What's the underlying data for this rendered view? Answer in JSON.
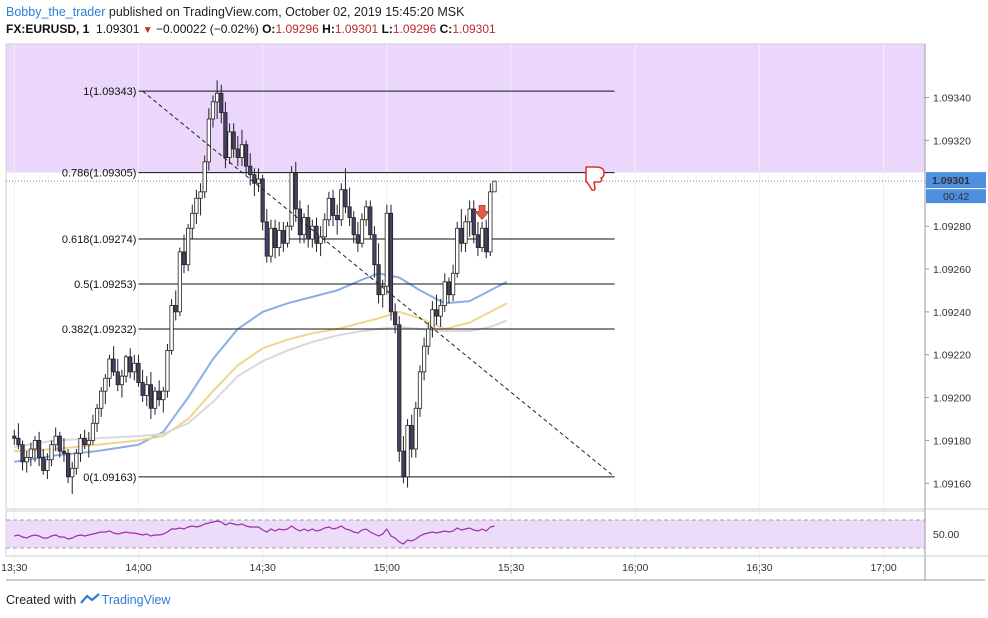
{
  "header": {
    "publisher": "Bobby_the_trader",
    "published_text": "published on TradingView.com, October 02, 2019 15:45:20 MSK",
    "symbol": "FX:EURUSD, 1",
    "last": "1.09301",
    "change": "−0.00022 (−0.02%)",
    "o_label": "O:",
    "o_value": "1.09296",
    "h_label": "H:",
    "h_value": "1.09301",
    "l_label": "L:",
    "l_value": "1.09296",
    "c_label": "C:",
    "c_value": "1.09301"
  },
  "price_axis": {
    "ticks": [
      "1.09340",
      "1.09320",
      "1.09300",
      "1.09280",
      "1.09260",
      "1.09240",
      "1.09220",
      "1.09200",
      "1.09180",
      "1.09160"
    ],
    "last_price_label": "1.09301",
    "countdown_label": "00:42"
  },
  "rsi_axis": {
    "label": "50.00"
  },
  "time_axis": {
    "ticks": [
      "13:30",
      "14:00",
      "14:30",
      "15:00",
      "15:30",
      "16:00",
      "16:30",
      "17:00"
    ]
  },
  "fib_levels": [
    {
      "label": "1(1.09343)",
      "price": 1.09343
    },
    {
      "label": "0.786(1.09305)",
      "price": 1.09305
    },
    {
      "label": "0.618(1.09274)",
      "price": 1.09274
    },
    {
      "label": "0.5(1.09253)",
      "price": 1.09253
    },
    {
      "label": "0.382(1.09232)",
      "price": 1.09232
    },
    {
      "label": "0(1.09163)",
      "price": 1.09163
    }
  ],
  "footer": {
    "created_with": "Created with",
    "brand": "TradingView"
  },
  "colors": {
    "zone": "#ead7fb",
    "candle_dark": "#4a3d66",
    "candle_light": "#ffffff",
    "ma_blue": "#8aaee6",
    "ma_yellow": "#f0d58a",
    "ma_gray": "#d9d9d9",
    "rsi": "#9b2fa8",
    "rsi_band": "#ecdcfa",
    "arrow_down": "#e35b4a",
    "thumb": "#e0332b"
  },
  "chart_data": {
    "type": "candlestick",
    "x_axis": "time",
    "y_axis": "price",
    "resolution_minutes": 1,
    "ylim": [
      1.09148,
      1.09365
    ],
    "xlim": [
      "13:28",
      "17:10"
    ],
    "candles": [
      [
        1.09182,
        1.09185,
        1.09178,
        1.09181
      ],
      [
        1.09181,
        1.09188,
        1.09176,
        1.09178
      ],
      [
        1.09178,
        1.0918,
        1.09166,
        1.0917
      ],
      [
        1.0917,
        1.09175,
        1.09165,
        1.09172
      ],
      [
        1.09172,
        1.09179,
        1.09168,
        1.09176
      ],
      [
        1.09176,
        1.09182,
        1.0917,
        1.0918
      ],
      [
        1.0918,
        1.09184,
        1.09168,
        1.09172
      ],
      [
        1.09172,
        1.09176,
        1.09164,
        1.09166
      ],
      [
        1.09166,
        1.09174,
        1.09162,
        1.09171
      ],
      [
        1.09171,
        1.0918,
        1.09168,
        1.09178
      ],
      [
        1.09178,
        1.09186,
        1.09175,
        1.09182
      ],
      [
        1.09182,
        1.09184,
        1.09172,
        1.09175
      ],
      [
        1.09175,
        1.09181,
        1.0917,
        1.09174
      ],
      [
        1.09174,
        1.09176,
        1.0916,
        1.09163
      ],
      [
        1.09163,
        1.0917,
        1.09155,
        1.09167
      ],
      [
        1.09167,
        1.09176,
        1.09164,
        1.09174
      ],
      [
        1.09174,
        1.09183,
        1.0917,
        1.09181
      ],
      [
        1.09181,
        1.09185,
        1.09176,
        1.09178
      ],
      [
        1.09178,
        1.09184,
        1.09172,
        1.0918
      ],
      [
        1.0918,
        1.09192,
        1.09178,
        1.09188
      ],
      [
        1.09188,
        1.09197,
        1.09184,
        1.09195
      ],
      [
        1.09195,
        1.09205,
        1.09191,
        1.09203
      ],
      [
        1.09203,
        1.09211,
        1.09197,
        1.09209
      ],
      [
        1.09209,
        1.0922,
        1.09205,
        1.09218
      ],
      [
        1.09218,
        1.09224,
        1.0921,
        1.09212
      ],
      [
        1.09212,
        1.09218,
        1.09203,
        1.09206
      ],
      [
        1.09206,
        1.09213,
        1.092,
        1.0921
      ],
      [
        1.0921,
        1.0922,
        1.09207,
        1.09219
      ],
      [
        1.09219,
        1.09223,
        1.09209,
        1.09212
      ],
      [
        1.09212,
        1.0922,
        1.09208,
        1.09216
      ],
      [
        1.09216,
        1.0922,
        1.09205,
        1.09207
      ],
      [
        1.09207,
        1.09213,
        1.09198,
        1.09201
      ],
      [
        1.09201,
        1.0921,
        1.09196,
        1.09206
      ],
      [
        1.09206,
        1.09212,
        1.0919,
        1.09195
      ],
      [
        1.09195,
        1.09205,
        1.09192,
        1.09203
      ],
      [
        1.09203,
        1.09208,
        1.09196,
        1.09199
      ],
      [
        1.09199,
        1.09205,
        1.09193,
        1.09203
      ],
      [
        1.09203,
        1.09225,
        1.092,
        1.09222
      ],
      [
        1.09222,
        1.09246,
        1.0922,
        1.09243
      ],
      [
        1.09243,
        1.0925,
        1.09236,
        1.0924
      ],
      [
        1.0924,
        1.0927,
        1.09238,
        1.09268
      ],
      [
        1.09268,
        1.09276,
        1.09258,
        1.09262
      ],
      [
        1.09262,
        1.09281,
        1.09259,
        1.09279
      ],
      [
        1.09279,
        1.0929,
        1.09274,
        1.09286
      ],
      [
        1.09286,
        1.09297,
        1.09281,
        1.09293
      ],
      [
        1.09293,
        1.093,
        1.09285,
        1.09296
      ],
      [
        1.09296,
        1.09313,
        1.09293,
        1.0931
      ],
      [
        1.0931,
        1.09335,
        1.09306,
        1.0933
      ],
      [
        1.0933,
        1.09341,
        1.09326,
        1.09338
      ],
      [
        1.09338,
        1.09348,
        1.0933,
        1.09342
      ],
      [
        1.09342,
        1.09346,
        1.09328,
        1.09333
      ],
      [
        1.09333,
        1.09338,
        1.09307,
        1.09312
      ],
      [
        1.09312,
        1.09328,
        1.09309,
        1.09324
      ],
      [
        1.09324,
        1.09328,
        1.09312,
        1.09316
      ],
      [
        1.09316,
        1.09322,
        1.09308,
        1.09312
      ],
      [
        1.09312,
        1.09325,
        1.09308,
        1.09318
      ],
      [
        1.09318,
        1.0932,
        1.09304,
        1.09308
      ],
      [
        1.09308,
        1.09314,
        1.09299,
        1.09304
      ],
      [
        1.09304,
        1.09307,
        1.09294,
        1.093
      ],
      [
        1.093,
        1.09307,
        1.09296,
        1.09302
      ],
      [
        1.09302,
        1.09304,
        1.09278,
        1.09282
      ],
      [
        1.09282,
        1.09288,
        1.09263,
        1.09266
      ],
      [
        1.09266,
        1.09283,
        1.09263,
        1.09279
      ],
      [
        1.09279,
        1.09283,
        1.09265,
        1.0927
      ],
      [
        1.0927,
        1.09282,
        1.09266,
        1.09278
      ],
      [
        1.09278,
        1.09282,
        1.09268,
        1.09272
      ],
      [
        1.09272,
        1.09282,
        1.0927,
        1.0928
      ],
      [
        1.0928,
        1.09308,
        1.09278,
        1.09305
      ],
      [
        1.09305,
        1.0931,
        1.09282,
        1.09288
      ],
      [
        1.09288,
        1.09292,
        1.09272,
        1.09276
      ],
      [
        1.09276,
        1.09286,
        1.09272,
        1.09284
      ],
      [
        1.09284,
        1.0929,
        1.0927,
        1.09274
      ],
      [
        1.09274,
        1.09283,
        1.0927,
        1.0928
      ],
      [
        1.0928,
        1.09284,
        1.09268,
        1.09272
      ],
      [
        1.09272,
        1.0928,
        1.09266,
        1.09275
      ],
      [
        1.09275,
        1.09286,
        1.09272,
        1.09283
      ],
      [
        1.09283,
        1.09296,
        1.0928,
        1.09293
      ],
      [
        1.09293,
        1.09297,
        1.0928,
        1.09285
      ],
      [
        1.09285,
        1.0929,
        1.09276,
        1.09283
      ],
      [
        1.09283,
        1.093,
        1.0928,
        1.09297
      ],
      [
        1.09297,
        1.09307,
        1.09286,
        1.09289
      ],
      [
        1.09289,
        1.09298,
        1.0928,
        1.09284
      ],
      [
        1.09284,
        1.09287,
        1.09272,
        1.09276
      ],
      [
        1.09276,
        1.09282,
        1.09268,
        1.09272
      ],
      [
        1.09272,
        1.09286,
        1.0927,
        1.09283
      ],
      [
        1.09283,
        1.09292,
        1.0928,
        1.09289
      ],
      [
        1.09289,
        1.09292,
        1.09274,
        1.09276
      ],
      [
        1.09276,
        1.0928,
        1.09256,
        1.09262
      ],
      [
        1.09262,
        1.09272,
        1.09244,
        1.09248
      ],
      [
        1.09248,
        1.09255,
        1.09242,
        1.09252
      ],
      [
        1.09252,
        1.0929,
        1.09248,
        1.09286
      ],
      [
        1.09286,
        1.0929,
        1.09236,
        1.0924
      ],
      [
        1.0924,
        1.09244,
        1.0923,
        1.09234
      ],
      [
        1.09234,
        1.09238,
        1.0917,
        1.09175
      ],
      [
        1.09175,
        1.09182,
        1.0916,
        1.09163
      ],
      [
        1.09163,
        1.0919,
        1.09158,
        1.09187
      ],
      [
        1.09187,
        1.09192,
        1.09172,
        1.09176
      ],
      [
        1.09176,
        1.09198,
        1.09172,
        1.09195
      ],
      [
        1.09195,
        1.09215,
        1.09191,
        1.09212
      ],
      [
        1.09212,
        1.09228,
        1.09208,
        1.09224
      ],
      [
        1.09224,
        1.09235,
        1.0922,
        1.09232
      ],
      [
        1.09232,
        1.09245,
        1.09228,
        1.09241
      ],
      [
        1.09241,
        1.09248,
        1.09234,
        1.09238
      ],
      [
        1.09238,
        1.09246,
        1.09233,
        1.09243
      ],
      [
        1.09243,
        1.09258,
        1.0924,
        1.09254
      ],
      [
        1.09254,
        1.09256,
        1.09244,
        1.09248
      ],
      [
        1.09248,
        1.09262,
        1.09245,
        1.09258
      ],
      [
        1.09258,
        1.09282,
        1.09256,
        1.09279
      ],
      [
        1.09279,
        1.09288,
        1.09268,
        1.09272
      ],
      [
        1.09272,
        1.09285,
        1.09268,
        1.09282
      ],
      [
        1.09282,
        1.09292,
        1.09275,
        1.09288
      ],
      [
        1.09288,
        1.09292,
        1.09272,
        1.09276
      ],
      [
        1.09276,
        1.09282,
        1.09266,
        1.0927
      ],
      [
        1.0927,
        1.09282,
        1.09268,
        1.09279
      ],
      [
        1.09279,
        1.09283,
        1.09265,
        1.09268
      ],
      [
        1.09268,
        1.093,
        1.09266,
        1.09296
      ],
      [
        1.09296,
        1.09301,
        1.09296,
        1.09301
      ]
    ],
    "moving_averages": [
      {
        "color": "#8aaee6",
        "points": [
          [
            0,
            1.0917
          ],
          [
            10,
            1.09173
          ],
          [
            20,
            1.09175
          ],
          [
            30,
            1.09178
          ],
          [
            36,
            1.09184
          ],
          [
            42,
            1.092
          ],
          [
            48,
            1.09218
          ],
          [
            54,
            1.09232
          ],
          [
            60,
            1.0924
          ],
          [
            66,
            1.09244
          ],
          [
            72,
            1.09247
          ],
          [
            78,
            1.0925
          ],
          [
            84,
            1.09255
          ],
          [
            88,
            1.09258
          ],
          [
            93,
            1.09256
          ],
          [
            98,
            1.0925
          ],
          [
            104,
            1.09244
          ],
          [
            110,
            1.09245
          ],
          [
            115,
            1.0925
          ],
          [
            119,
            1.09254
          ]
        ]
      },
      {
        "color": "#f0d58a",
        "points": [
          [
            0,
            1.09175
          ],
          [
            10,
            1.09176
          ],
          [
            20,
            1.09178
          ],
          [
            30,
            1.0918
          ],
          [
            36,
            1.09182
          ],
          [
            42,
            1.0919
          ],
          [
            48,
            1.09203
          ],
          [
            54,
            1.09215
          ],
          [
            60,
            1.09223
          ],
          [
            66,
            1.09227
          ],
          [
            72,
            1.0923
          ],
          [
            78,
            1.09232
          ],
          [
            84,
            1.09235
          ],
          [
            88,
            1.09237
          ],
          [
            93,
            1.0924
          ],
          [
            98,
            1.09237
          ],
          [
            104,
            1.09232
          ],
          [
            110,
            1.09235
          ],
          [
            115,
            1.0924
          ],
          [
            119,
            1.09244
          ]
        ]
      },
      {
        "color": "#d9d9d9",
        "points": [
          [
            0,
            1.09177
          ],
          [
            10,
            1.0918
          ],
          [
            20,
            1.09181
          ],
          [
            30,
            1.09182
          ],
          [
            36,
            1.09183
          ],
          [
            42,
            1.09188
          ],
          [
            48,
            1.09198
          ],
          [
            54,
            1.0921
          ],
          [
            60,
            1.09217
          ],
          [
            66,
            1.09222
          ],
          [
            72,
            1.09226
          ],
          [
            78,
            1.09229
          ],
          [
            84,
            1.09231
          ],
          [
            88,
            1.09232
          ],
          [
            93,
            1.09233
          ],
          [
            98,
            1.09232
          ],
          [
            104,
            1.09231
          ],
          [
            110,
            1.09231
          ],
          [
            115,
            1.09233
          ],
          [
            119,
            1.09236
          ]
        ]
      }
    ],
    "trendline": {
      "from": [
        "14:01",
        1.09343
      ],
      "to": [
        "15:55",
        1.09163
      ],
      "style": "dashed"
    },
    "rsi_values": [
      48,
      49,
      47,
      46,
      48,
      49,
      48,
      46,
      46,
      48,
      49,
      47,
      47,
      45,
      46,
      48,
      49,
      48,
      49,
      50,
      51,
      52,
      52,
      53,
      51,
      50,
      51,
      52,
      51,
      51,
      50,
      49,
      50,
      48,
      49,
      49,
      50,
      52,
      55,
      55,
      56,
      55,
      57,
      58,
      57,
      58,
      60,
      61,
      62,
      63,
      62,
      59,
      61,
      60,
      59,
      60,
      58,
      57,
      57,
      57,
      54,
      52,
      55,
      53,
      55,
      54,
      55,
      58,
      55,
      53,
      55,
      53,
      55,
      53,
      54,
      56,
      57,
      55,
      56,
      58,
      55,
      54,
      52,
      51,
      54,
      55,
      52,
      50,
      48,
      50,
      55,
      48,
      46,
      42,
      40,
      44,
      43,
      45,
      48,
      50,
      51,
      52,
      51,
      52,
      53,
      52,
      53,
      56,
      54,
      55,
      56,
      54,
      53,
      55,
      53,
      57,
      58
    ],
    "rsi_reference": 50
  }
}
